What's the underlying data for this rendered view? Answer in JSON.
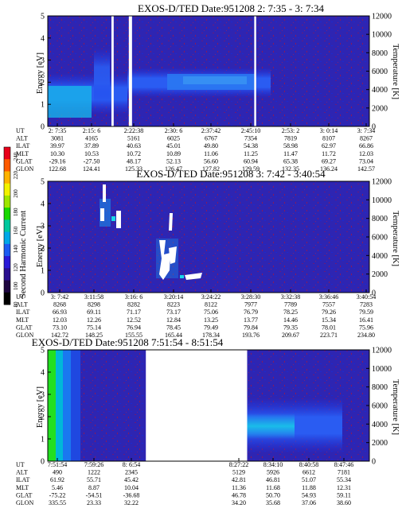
{
  "colorbar": {
    "label": "Second Harmonic Current",
    "ticks": [
      "240",
      "220",
      "200",
      "180",
      "160",
      "140",
      "120",
      "100",
      "80"
    ],
    "colors": [
      "#e8001a",
      "#ff5a00",
      "#ffb300",
      "#f2f200",
      "#9ee600",
      "#18d800",
      "#00c89e",
      "#00a8e8",
      "#1c5cf2",
      "#2a1ad8",
      "#2a1090",
      "#1e0640",
      "#000000"
    ]
  },
  "chart_data": [
    {
      "type": "heatmap",
      "title": "EXOS-D/TED   Date:951208  2: 7:35 - 3: 7:34",
      "ylabel": "Energy [eV]",
      "y2label": "Temperature [K]",
      "ylim": [
        0,
        5
      ],
      "y2lim": [
        0,
        12000
      ],
      "yticks": [
        "0",
        "1",
        "2",
        "3",
        "4",
        "5"
      ],
      "y2ticks": [
        "0",
        "2000",
        "4000",
        "6000",
        "8000",
        "10000",
        "12000"
      ],
      "gaps": [
        {
          "x0": 0.198,
          "x1": 0.205
        },
        {
          "x0": 0.252,
          "x1": 0.262
        },
        {
          "x0": 0.642,
          "x1": 0.648
        }
      ],
      "table": {
        "labels": [
          "UT",
          "ALT",
          "ILAT",
          "MLT",
          "GLAT",
          "GLON"
        ],
        "columns": [
          [
            "2: 7:35",
            "3081",
            "39.97",
            "10.30",
            "-29.16",
            "122.68"
          ],
          [
            "2:15: 6",
            "4165",
            "37.89",
            "10.53",
            "-27.50",
            "124.41"
          ],
          [
            "2:22:38",
            "5161",
            "40.63",
            "10.72",
            "48.17",
            "125.33"
          ],
          [
            "2:30: 6",
            "6025",
            "45.01",
            "10.89",
            "52.13",
            "126.47"
          ],
          [
            "2:37:42",
            "6767",
            "49.80",
            "11.06",
            "56.60",
            "127.82"
          ],
          [
            "2:45:10",
            "7354",
            "54.38",
            "11.25",
            "60.94",
            "129.59"
          ],
          [
            "2:53: 2",
            "7819",
            "58.98",
            "11.47",
            "65.38",
            "132.35"
          ],
          [
            "3: 0:14",
            "8107",
            "62.97",
            "11.72",
            "69.27",
            "136.24"
          ],
          [
            "3: 7:34",
            "8267",
            "66.86",
            "12.03",
            "73.04",
            "142.57"
          ]
        ]
      }
    },
    {
      "type": "heatmap",
      "title": "EXOS-D/TED   Date:951208  3: 7:42 - 3:40:54",
      "ylabel": "Energy [eV]",
      "y2label": "Temperature [K]",
      "ylim": [
        0,
        5
      ],
      "y2lim": [
        0,
        12000
      ],
      "yticks": [
        "0",
        "1",
        "2",
        "3",
        "4",
        "5"
      ],
      "y2ticks": [
        "0",
        "2000",
        "4000",
        "6000",
        "8000",
        "10000",
        "12000"
      ],
      "table": {
        "labels": [
          "UT",
          "ALT",
          "ILAT",
          "MLT",
          "GLAT",
          "GLON"
        ],
        "columns": [
          [
            "3: 7:42",
            "8268",
            "66.93",
            "12.03",
            "73.10",
            "142.72"
          ],
          [
            "3:11:58",
            "8298",
            "69.11",
            "12.26",
            "75.14",
            "148.25"
          ],
          [
            "3:16: 6",
            "8282",
            "71.17",
            "12.52",
            "76.94",
            "155.55"
          ],
          [
            "3:20:14",
            "8223",
            "73.17",
            "12.84",
            "78.45",
            "165.44"
          ],
          [
            "3:24:22",
            "8122",
            "75.06",
            "13.25",
            "79.49",
            "178.34"
          ],
          [
            "3:28:30",
            "7977",
            "76.79",
            "13.77",
            "79.84",
            "193.76"
          ],
          [
            "3:32:38",
            "7789",
            "78.25",
            "14.46",
            "79.35",
            "209.67"
          ],
          [
            "3:36:46",
            "7557",
            "79.26",
            "15.34",
            "78.01",
            "223.71"
          ],
          [
            "3:40:54",
            "7283",
            "79.59",
            "16.41",
            "75.96",
            "234.80"
          ]
        ]
      }
    },
    {
      "type": "heatmap",
      "title": "EXOS-D/TED   Date:951208  7:51:54 - 8:51:54",
      "ylabel": "Energy [eV]",
      "y2label": "Temperature [K]",
      "ylim": [
        0,
        5
      ],
      "y2lim": [
        0,
        12000
      ],
      "yticks": [
        "0",
        "1",
        "2",
        "3",
        "4",
        "5"
      ],
      "y2ticks": [
        "0",
        "2000",
        "4000",
        "6000",
        "8000",
        "10000",
        "12000"
      ],
      "gaps": [
        {
          "x0": 0.305,
          "x1": 0.62
        }
      ],
      "table": {
        "labels": [
          "UT",
          "ALT",
          "ILAT",
          "MLT",
          "GLAT",
          "GLON"
        ],
        "columns": [
          [
            "7:51:54",
            "490",
            "61.92",
            "5.46",
            "-75.22",
            "335.55"
          ],
          [
            "7:59:26",
            "1222",
            "55.71",
            "8.87",
            "-54.51",
            "23.33"
          ],
          [
            "8: 6:54",
            "2345",
            "45.42",
            "10.04",
            "-36.68",
            "32.22"
          ],
          [
            "8:27:22",
            "5129",
            "42.81",
            "11.36",
            "46.78",
            "34.20"
          ],
          [
            "8:34:10",
            "5926",
            "46.81",
            "11.68",
            "50.70",
            "35.68"
          ],
          [
            "8:40:58",
            "6612",
            "51.07",
            "11.88",
            "54.93",
            "37.06"
          ],
          [
            "8:47:46",
            "7181",
            "55.34",
            "12.31",
            "59.11",
            "38.60"
          ]
        ]
      }
    }
  ]
}
